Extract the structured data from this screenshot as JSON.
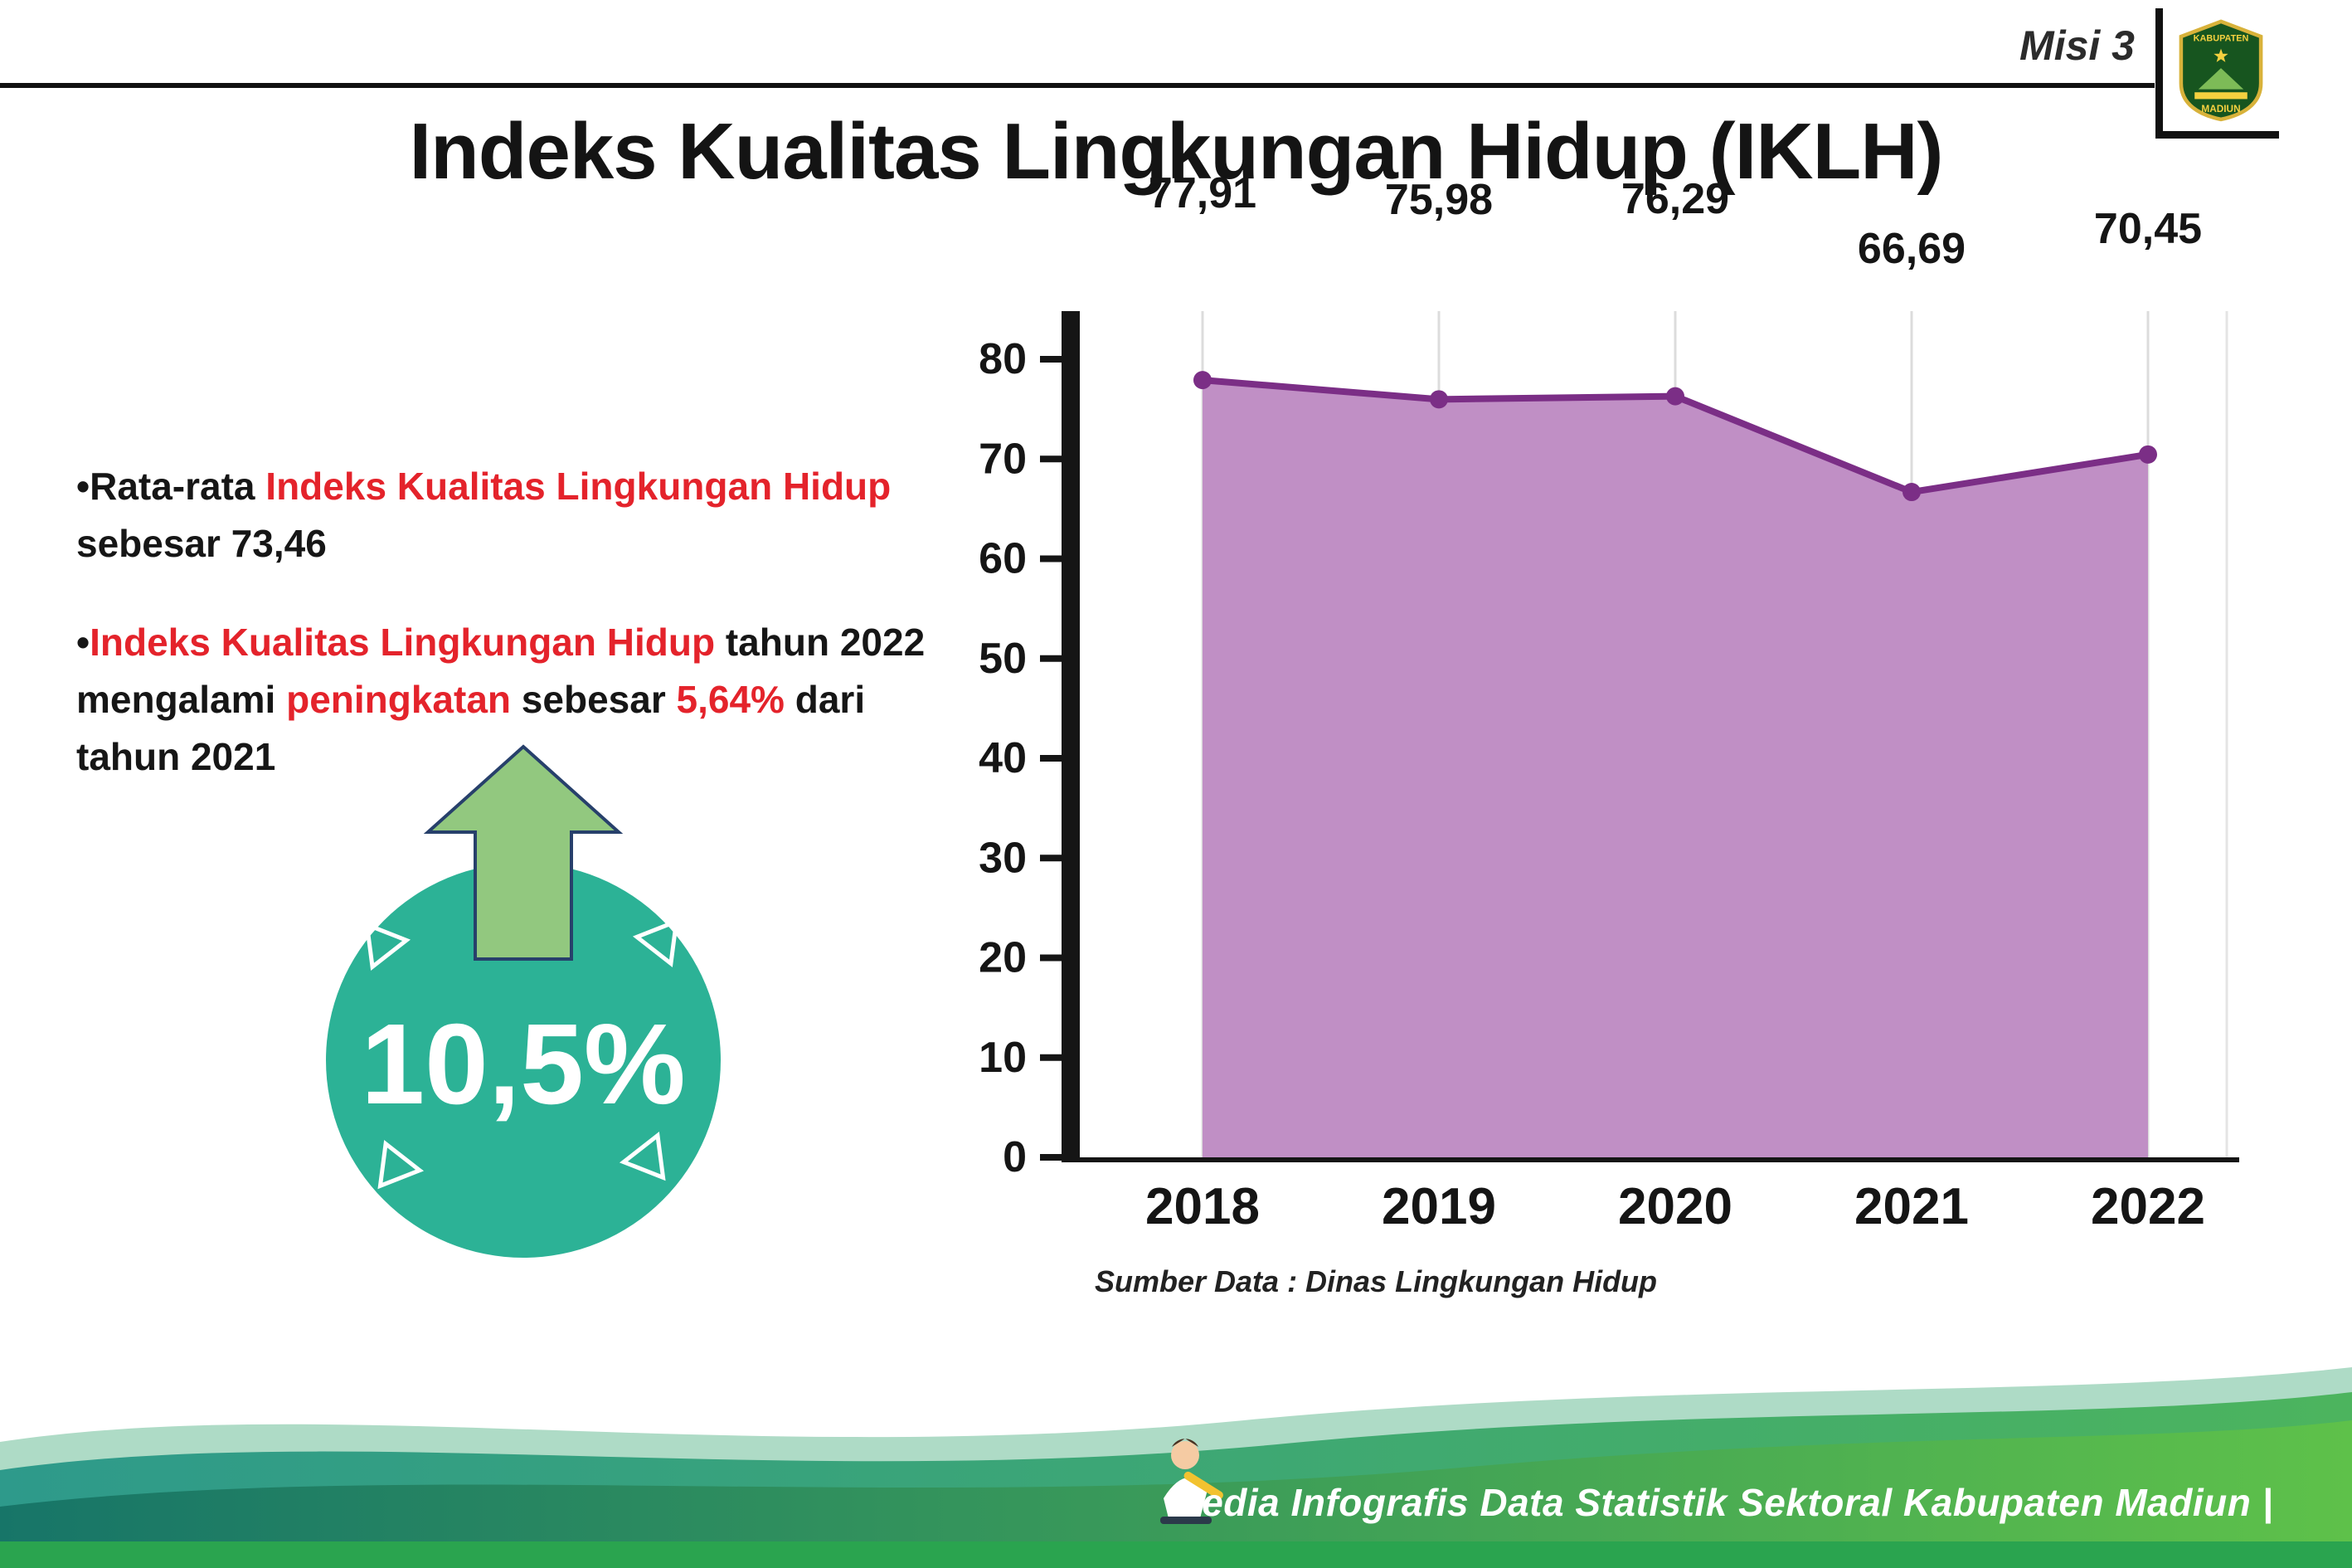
{
  "header": {
    "misi_label": "Misi 3",
    "title": "Indeks Kualitas Lingkungan Hidup (IKLH)"
  },
  "logo": {
    "top_text": "KABUPATEN",
    "bottom_text": "MADIUN"
  },
  "bullets": {
    "b1": [
      {
        "text": "•Rata-rata ",
        "color": "black"
      },
      {
        "text": "Indeks Kualitas Lingkungan Hidup",
        "color": "red"
      },
      {
        "text": " sebesar 73,46",
        "color": "black"
      }
    ],
    "b2": [
      {
        "text": "•",
        "color": "black"
      },
      {
        "text": "Indeks Kualitas Lingkungan Hidup",
        "color": "red"
      },
      {
        "text": " tahun 2022 mengalami ",
        "color": "black"
      },
      {
        "text": "peningkatan",
        "color": "red"
      },
      {
        "text": " sebesar ",
        "color": "black"
      },
      {
        "text": "5,64%",
        "color": "red"
      },
      {
        "text": " dari tahun 2021",
        "color": "black"
      }
    ]
  },
  "badge": {
    "value": "10,5%"
  },
  "chart_data": {
    "type": "area",
    "title": "Indeks Kualitas Lingkungan Hidup (IKLH)",
    "categories": [
      "2018",
      "2019",
      "2020",
      "2021",
      "2022"
    ],
    "values": [
      77.91,
      75.98,
      76.29,
      66.69,
      70.45
    ],
    "value_labels": [
      "77,91",
      "75,98",
      "76,29",
      "66,69",
      "70,45"
    ],
    "xlabel": "",
    "ylabel": "",
    "ylim": [
      0,
      80
    ],
    "ytick_step": 10,
    "grid": "vertical",
    "legend": "none",
    "area_color": "#c08fc5",
    "line_color": "#7b2e86",
    "source": "Sumber Data : Dinas Lingkungan Hidup"
  },
  "footer": {
    "caption": "Media Infografis Data Statistik Sektoral Kabupaten Madiun |"
  }
}
